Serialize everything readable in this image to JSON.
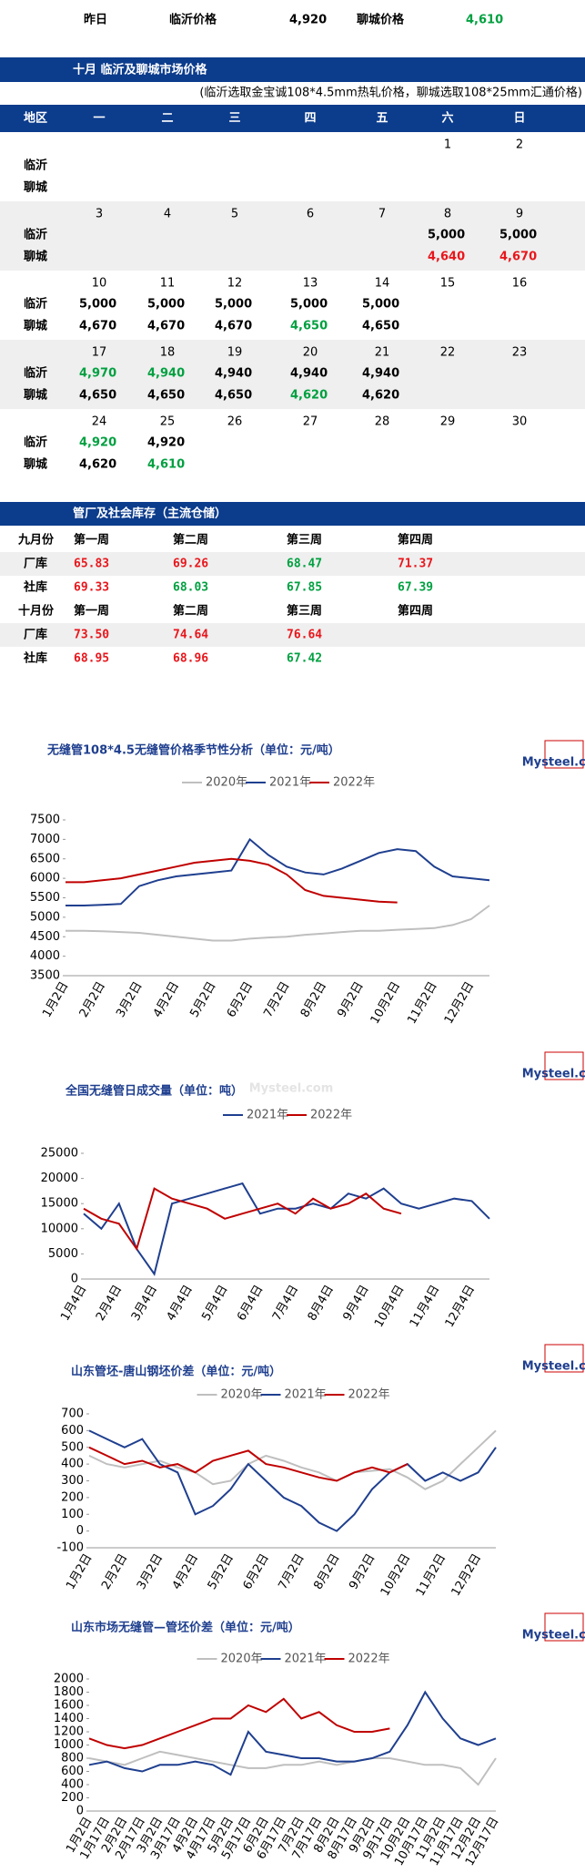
{
  "header": {
    "yesterday": "昨日",
    "linyi_label": "临沂价格",
    "linyi_price": "4,920",
    "liaocheng_label": "聊城价格",
    "liaocheng_price": "4,610",
    "price_color": "#00a040"
  },
  "calendar": {
    "title": "十月  临沂及聊城市场价格",
    "note": "(临沂选取金宝诚108*4.5mm热轧价格，聊城选取108*25mm汇通价格)",
    "columns": [
      "地区",
      "一",
      "二",
      "三",
      "四",
      "五",
      "六",
      "日"
    ],
    "row_labels": [
      "临沂",
      "聊城"
    ],
    "weeks": [
      {
        "dates": [
          null,
          null,
          null,
          null,
          null,
          "1",
          "2"
        ],
        "linyi": [
          null,
          null,
          null,
          null,
          null,
          null,
          null
        ],
        "liaocheng": [
          null,
          null,
          null,
          null,
          null,
          null,
          null
        ]
      },
      {
        "dates": [
          "3",
          "4",
          "5",
          "6",
          "7",
          "8",
          "9"
        ],
        "linyi": [
          null,
          null,
          null,
          null,
          null,
          {
            "text": "5,000",
            "color": "#000000"
          },
          {
            "text": "5,000",
            "color": "#000000"
          }
        ],
        "liaocheng": [
          null,
          null,
          null,
          null,
          null,
          {
            "text": "4,640",
            "color": "#e8161b"
          },
          {
            "text": "4,670",
            "color": "#e8161b"
          }
        ]
      },
      {
        "dates": [
          "10",
          "11",
          "12",
          "13",
          "14",
          "15",
          "16"
        ],
        "linyi": [
          {
            "text": "5,000",
            "color": "#000000"
          },
          {
            "text": "5,000",
            "color": "#000000"
          },
          {
            "text": "5,000",
            "color": "#000000"
          },
          {
            "text": "5,000",
            "color": "#000000"
          },
          {
            "text": "5,000",
            "color": "#000000"
          },
          null,
          null
        ],
        "liaocheng": [
          {
            "text": "4,670",
            "color": "#000000"
          },
          {
            "text": "4,670",
            "color": "#000000"
          },
          {
            "text": "4,670",
            "color": "#000000"
          },
          {
            "text": "4,650",
            "color": "#00a040"
          },
          {
            "text": "4,650",
            "color": "#000000"
          },
          null,
          null
        ]
      },
      {
        "dates": [
          "17",
          "18",
          "19",
          "20",
          "21",
          "22",
          "23"
        ],
        "linyi": [
          {
            "text": "4,970",
            "color": "#00a040"
          },
          {
            "text": "4,940",
            "color": "#00a040"
          },
          {
            "text": "4,940",
            "color": "#000000"
          },
          {
            "text": "4,940",
            "color": "#000000"
          },
          {
            "text": "4,940",
            "color": "#000000"
          },
          null,
          null
        ],
        "liaocheng": [
          {
            "text": "4,650",
            "color": "#000000"
          },
          {
            "text": "4,650",
            "color": "#000000"
          },
          {
            "text": "4,650",
            "color": "#000000"
          },
          {
            "text": "4,620",
            "color": "#00a040"
          },
          {
            "text": "4,620",
            "color": "#000000"
          },
          null,
          null
        ]
      },
      {
        "dates": [
          "24",
          "25",
          "26",
          "27",
          "28",
          "29",
          "30"
        ],
        "linyi": [
          {
            "text": "4,920",
            "color": "#00a040"
          },
          {
            "text": "4,920",
            "color": "#000000"
          },
          null,
          null,
          null,
          null,
          null
        ],
        "liaocheng": [
          {
            "text": "4,620",
            "color": "#000000"
          },
          {
            "text": "4,610",
            "color": "#00a040"
          },
          null,
          null,
          null,
          null,
          null
        ]
      }
    ]
  },
  "inventory": {
    "title": "管厂及社会库存（主流仓储）",
    "months": [
      {
        "label": "九月份",
        "weeks": [
          "第一周",
          "第二周",
          "第三周",
          "第四周"
        ],
        "rows": [
          {
            "label": "厂库",
            "cells": [
              {
                "text": "65.83",
                "color": "#e8161b"
              },
              {
                "text": "69.26",
                "color": "#e8161b"
              },
              {
                "text": "68.47",
                "color": "#00a040"
              },
              {
                "text": "71.37",
                "color": "#e8161b"
              }
            ]
          },
          {
            "label": "社库",
            "cells": [
              {
                "text": "69.33",
                "color": "#e8161b"
              },
              {
                "text": "68.03",
                "color": "#00a040"
              },
              {
                "text": "67.85",
                "color": "#00a040"
              },
              {
                "text": "67.39",
                "color": "#00a040"
              }
            ]
          }
        ]
      },
      {
        "label": "十月份",
        "weeks": [
          "第一周",
          "第二周",
          "第三周",
          "第四周"
        ],
        "rows": [
          {
            "label": "厂库",
            "cells": [
              {
                "text": "73.50",
                "color": "#e8161b"
              },
              {
                "text": "74.64",
                "color": "#e8161b"
              },
              {
                "text": "76.64",
                "color": "#e8161b"
              }
            ]
          },
          {
            "label": "社库",
            "cells": [
              {
                "text": "68.95",
                "color": "#e8161b"
              },
              {
                "text": "68.96",
                "color": "#e8161b"
              },
              {
                "text": "67.42",
                "color": "#00a040"
              }
            ]
          }
        ]
      }
    ]
  },
  "logo": "Mysteel.com",
  "watermark": "Mysteel.com",
  "charts": [
    {
      "type": "line",
      "title": "无缝管108*4.5无缝管价格季节性分析（单位：元/吨）",
      "categories": [
        "1月2日",
        null,
        "2月2日",
        null,
        "3月2日",
        null,
        "4月2日",
        null,
        "5月2日",
        null,
        "6月2日",
        null,
        "7月2日",
        null,
        "8月2日",
        null,
        "9月2日",
        null,
        "10月2日",
        null,
        "11月2日",
        null,
        "12月2日",
        null
      ],
      "series": [
        {
          "name": "2020年",
          "color": "#bfbfbf",
          "values": [
            4650,
            4650,
            4640,
            4620,
            4600,
            4550,
            4500,
            4450,
            4400,
            4400,
            4450,
            4480,
            4500,
            4550,
            4580,
            4620,
            4650,
            4650,
            4680,
            4700,
            4720,
            4800,
            4950,
            5300
          ]
        },
        {
          "name": "2021年",
          "color": "#1f3f8f",
          "values": [
            5300,
            5300,
            5320,
            5340,
            5800,
            5950,
            6050,
            6100,
            6150,
            6200,
            7000,
            6600,
            6300,
            6150,
            6100,
            6250,
            6450,
            6650,
            6750,
            6700,
            6300,
            6050,
            6000,
            5950
          ]
        },
        {
          "name": "2022年",
          "color": "#c00000",
          "values": [
            5900,
            5900,
            5950,
            6000,
            6100,
            6200,
            6300,
            6400,
            6450,
            6500,
            6450,
            6350,
            6100,
            5700,
            5550,
            5500,
            5450,
            5400,
            5380,
            null,
            null,
            null,
            null,
            null
          ]
        }
      ],
      "ylim": [
        3500,
        7500
      ],
      "yticks": [
        3500,
        4000,
        4500,
        5000,
        5500,
        6000,
        6500,
        7000,
        7500
      ]
    },
    {
      "type": "line",
      "title": "全国无缝管日成交量（单位：吨）",
      "categories": [
        "1月4日",
        null,
        "2月4日",
        null,
        "3月4日",
        null,
        "4月4日",
        null,
        "5月4日",
        null,
        "6月4日",
        null,
        "7月4日",
        null,
        "8月4日",
        null,
        "9月4日",
        null,
        "10月4日",
        null,
        "11月4日",
        null,
        "12月4日",
        null
      ],
      "series": [
        {
          "name": "2021年",
          "color": "#1f3f8f",
          "values": [
            13000,
            10000,
            15000,
            6000,
            1000,
            15000,
            16000,
            17000,
            18000,
            19000,
            13000,
            14000,
            14000,
            15000,
            14000,
            17000,
            16000,
            18000,
            15000,
            14000,
            15000,
            16000,
            15500,
            12000
          ]
        },
        {
          "name": "2022年",
          "color": "#c00000",
          "values": [
            14000,
            12000,
            11000,
            6000,
            18000,
            16000,
            15000,
            14000,
            12000,
            13000,
            14000,
            15000,
            13000,
            16000,
            14000,
            15000,
            17000,
            14000,
            13000,
            null,
            null,
            null,
            null,
            null
          ]
        }
      ],
      "ylim": [
        0,
        25000
      ],
      "yticks": [
        0,
        5000,
        10000,
        15000,
        20000,
        25000
      ]
    },
    {
      "type": "line",
      "title": "山东管坯-唐山钢坯价差（单位：元/吨）",
      "categories": [
        "1月2日",
        null,
        "2月2日",
        null,
        "3月2日",
        null,
        "4月2日",
        null,
        "5月2日",
        null,
        "6月2日",
        null,
        "7月2日",
        null,
        "8月2日",
        null,
        "9月2日",
        null,
        "10月2日",
        null,
        "11月2日",
        null,
        "12月2日",
        null
      ],
      "series": [
        {
          "name": "2020年",
          "color": "#bfbfbf",
          "values": [
            450,
            400,
            380,
            400,
            420,
            380,
            350,
            280,
            300,
            400,
            450,
            420,
            380,
            350,
            300,
            350,
            360,
            370,
            320,
            250,
            300,
            400,
            500,
            600
          ]
        },
        {
          "name": "2021年",
          "color": "#1f3f8f",
          "values": [
            600,
            550,
            500,
            550,
            400,
            350,
            100,
            150,
            250,
            400,
            300,
            200,
            150,
            50,
            0,
            100,
            250,
            350,
            400,
            300,
            350,
            300,
            350,
            500
          ]
        },
        {
          "name": "2022年",
          "color": "#c00000",
          "values": [
            500,
            450,
            400,
            420,
            380,
            400,
            350,
            420,
            450,
            480,
            400,
            380,
            350,
            320,
            300,
            350,
            380,
            350,
            400,
            null,
            null,
            null,
            null,
            null
          ]
        }
      ],
      "ylim": [
        -100,
        700
      ],
      "yticks": [
        -100,
        0,
        100,
        200,
        300,
        400,
        500,
        600,
        700
      ]
    },
    {
      "type": "line",
      "title": "山东市场无缝管—管坯价差（单位：元/吨）",
      "categories": [
        "1月2日",
        "1月17日",
        "2月2日",
        "2月17日",
        "3月2日",
        "3月17日",
        "4月2日",
        "4月17日",
        "5月2日",
        "5月17日",
        "6月2日",
        "6月17日",
        "7月2日",
        "7月17日",
        "8月2日",
        "8月17日",
        "9月2日",
        "9月17日",
        "10月2日",
        "10月17日",
        "11月2日",
        "11月17日",
        "12月2日",
        "12月17日"
      ],
      "series": [
        {
          "name": "2020年",
          "color": "#bfbfbf",
          "values": [
            800,
            750,
            700,
            800,
            900,
            850,
            800,
            750,
            700,
            650,
            650,
            700,
            700,
            750,
            700,
            750,
            800,
            800,
            750,
            700,
            700,
            650,
            400,
            800
          ]
        },
        {
          "name": "2021年",
          "color": "#1f3f8f",
          "values": [
            700,
            750,
            650,
            600,
            700,
            700,
            750,
            700,
            550,
            1200,
            900,
            850,
            800,
            800,
            750,
            750,
            800,
            900,
            1300,
            1800,
            1400,
            1100,
            1000,
            1100
          ]
        },
        {
          "name": "2022年",
          "color": "#c00000",
          "values": [
            1100,
            1000,
            950,
            1000,
            1100,
            1200,
            1300,
            1400,
            1400,
            1600,
            1500,
            1700,
            1400,
            1500,
            1300,
            1200,
            1200,
            1250,
            null,
            null,
            null,
            null,
            null,
            null
          ]
        }
      ],
      "ylim": [
        0,
        2000
      ],
      "yticks": [
        0,
        200,
        400,
        600,
        800,
        1000,
        1200,
        1400,
        1600,
        1800,
        2000
      ]
    }
  ]
}
